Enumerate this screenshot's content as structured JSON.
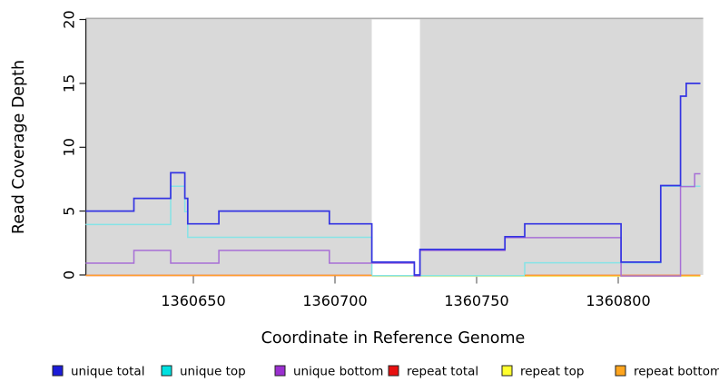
{
  "chart_data": {
    "type": "line",
    "subtype": "step-coverage-plot",
    "title": "",
    "xlabel": "Coordinate in Reference Genome",
    "ylabel": "Read Coverage Depth",
    "xlim": [
      1360612,
      1360830
    ],
    "ylim": [
      0,
      20
    ],
    "x_ticks": [
      1360650,
      1360700,
      1360750,
      1360800
    ],
    "y_ticks": [
      0,
      5,
      10,
      15,
      20
    ],
    "grid": false,
    "legend_position": "bottom",
    "shading_color": "#D9D9D9",
    "shading_border_color": "#ACACAC",
    "shaded_regions": [
      {
        "from": 1360612,
        "to": 1360713
      },
      {
        "from": 1360730,
        "to": 1360830
      }
    ],
    "unshaded_gap": {
      "from": 1360713,
      "to": 1360730
    },
    "series": [
      {
        "name": "repeat total",
        "color": "#E03A3A",
        "segments": [
          [
            [
              1360612,
              0
            ],
            [
              1360713,
              0
            ]
          ],
          [
            [
              1360767,
              0
            ],
            [
              1360829,
              0
            ]
          ]
        ]
      },
      {
        "name": "repeat top",
        "color": "#EDED7A",
        "segments": [
          [
            [
              1360713,
              0
            ],
            [
              1360829,
              0
            ]
          ]
        ]
      },
      {
        "name": "unique top",
        "color": "#86E3E6",
        "segments": [
          [
            [
              1360612,
              4
            ],
            [
              1360642,
              7
            ],
            [
              1360647,
              5
            ],
            [
              1360648,
              3
            ],
            [
              1360713,
              0
            ],
            [
              1360767,
              1
            ],
            [
              1360815,
              7
            ],
            [
              1360829,
              7
            ]
          ]
        ]
      },
      {
        "name": "repeat bottom",
        "color": "#FF9E2C",
        "segments": [
          [
            [
              1360612,
              0
            ],
            [
              1360713,
              0
            ]
          ],
          [
            [
              1360767,
              0
            ],
            [
              1360829,
              0
            ]
          ]
        ]
      },
      {
        "name": "unique bottom",
        "color": "#A76FD6",
        "segments": [
          [
            [
              1360612,
              1
            ],
            [
              1360629,
              2
            ],
            [
              1360642,
              1
            ],
            [
              1360659,
              2
            ],
            [
              1360698,
              1
            ],
            [
              1360728,
              0
            ],
            [
              1360730,
              2
            ],
            [
              1360760,
              3
            ],
            [
              1360801,
              0
            ],
            [
              1360822,
              7
            ],
            [
              1360827,
              8
            ],
            [
              1360829,
              8
            ]
          ]
        ]
      },
      {
        "name": "unique total",
        "color": "#3434E2",
        "segments": [
          [
            [
              1360612,
              5
            ],
            [
              1360629,
              6
            ],
            [
              1360642,
              8
            ],
            [
              1360647,
              6
            ],
            [
              1360648,
              4
            ],
            [
              1360659,
              5
            ],
            [
              1360698,
              4
            ],
            [
              1360713,
              1
            ],
            [
              1360728,
              0
            ],
            [
              1360730,
              2
            ],
            [
              1360760,
              3
            ],
            [
              1360767,
              4
            ],
            [
              1360801,
              1
            ],
            [
              1360815,
              7
            ],
            [
              1360822,
              14
            ],
            [
              1360824,
              15
            ],
            [
              1360829,
              15
            ]
          ]
        ]
      }
    ],
    "legend": [
      {
        "label": "unique total",
        "color": "#1C1CD8"
      },
      {
        "label": "unique top",
        "color": "#00E0E0"
      },
      {
        "label": "unique bottom",
        "color": "#9B30D0"
      },
      {
        "label": "repeat total",
        "color": "#E81010"
      },
      {
        "label": "repeat top",
        "color": "#FFFF2E"
      },
      {
        "label": "repeat bottom",
        "color": "#FFA51E"
      }
    ]
  }
}
